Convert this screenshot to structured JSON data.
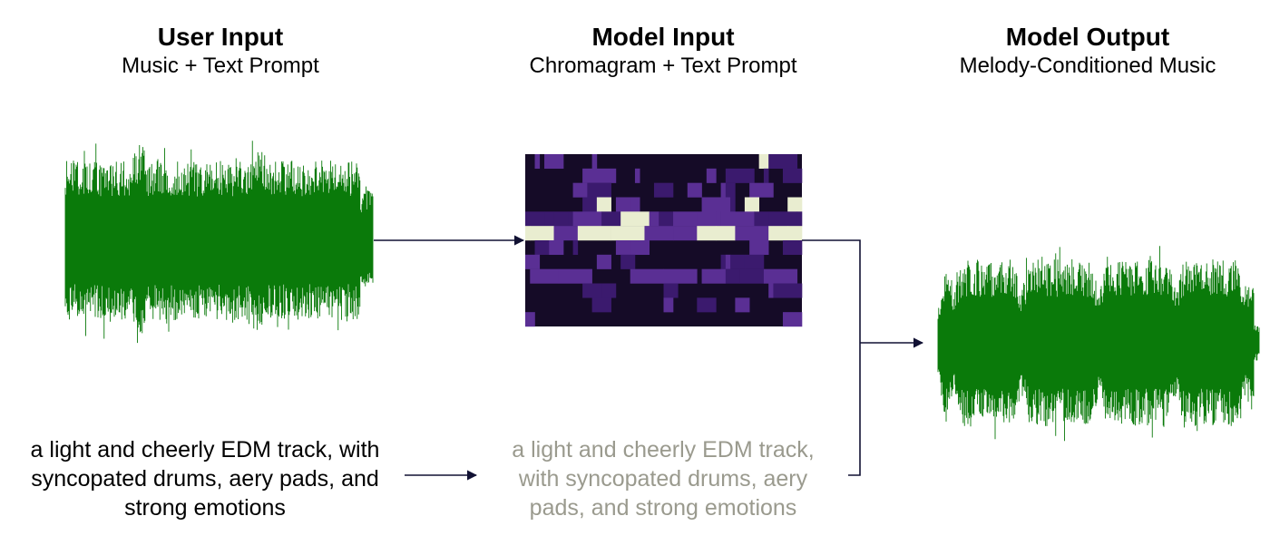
{
  "columns": [
    {
      "title": "User Input",
      "subtitle": "Music + Text Prompt"
    },
    {
      "title": "Model Input",
      "subtitle": "Chromagram + Text Prompt"
    },
    {
      "title": "Model Output",
      "subtitle": "Melody-Conditioned Music"
    }
  ],
  "prompts": {
    "user": "a light and cheerly EDM track, with\nsyncopated drums, aery pads, and\nstrong emotions",
    "model": "a light and cheerly EDM track,\nwith syncopated drums, aery\npads, and strong emotions"
  },
  "colors": {
    "waveform": "#0a7a0a",
    "text": "#000000",
    "prompt_faded": "#9a9a8e",
    "arrow": "#111133",
    "chroma_dark": "#150b27",
    "chroma_mid": "#3b1a6e",
    "chroma_purple": "#5a2f94",
    "chroma_light": "#e9edd0"
  }
}
